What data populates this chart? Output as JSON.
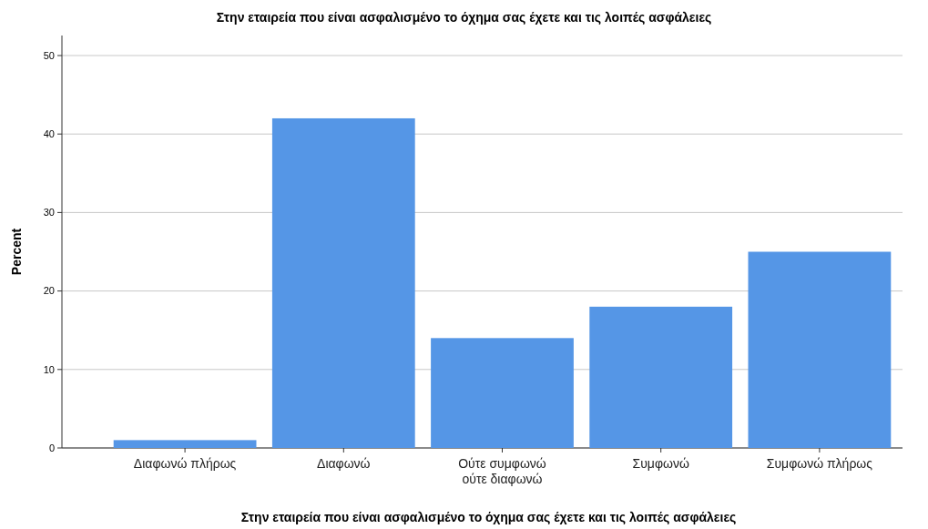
{
  "chart_data": {
    "type": "bar",
    "title": "Στην εταιρεία που είναι ασφαλισμένο το όχημα σας έχετε και τις λοιπές ασφάλειες",
    "xlabel": "Στην εταιρεία που είναι ασφαλισμένο το όχημα σας έχετε και τις λοιπές ασφάλειες",
    "ylabel": "Percent",
    "categories": [
      "Διαφωνώ πλήρως",
      "Διαφωνώ",
      "Ούτε συμφωνώ ούτε διαφωνώ",
      "Συμφωνώ",
      "Συμφωνώ πλήρως"
    ],
    "values": [
      1,
      42,
      14,
      18,
      25
    ],
    "color": "#5596e6",
    "ylim": [
      0,
      50
    ],
    "yticks": [
      0,
      10,
      20,
      30,
      40,
      50
    ],
    "grid": "y"
  }
}
